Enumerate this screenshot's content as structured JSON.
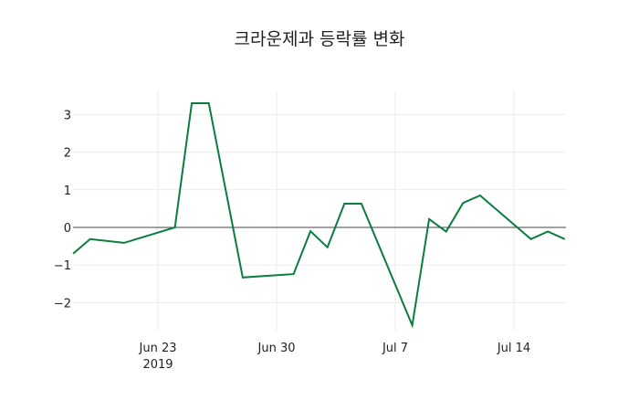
{
  "chart_data": {
    "type": "line",
    "title": "크라운제과 등락률 변화",
    "xlabel": "",
    "ylabel": "",
    "x": [
      "2019-06-18",
      "2019-06-19",
      "2019-06-21",
      "2019-06-24",
      "2019-06-25",
      "2019-06-26",
      "2019-06-28",
      "2019-07-01",
      "2019-07-02",
      "2019-07-03",
      "2019-07-04",
      "2019-07-05",
      "2019-07-08",
      "2019-07-09",
      "2019-07-10",
      "2019-07-11",
      "2019-07-12",
      "2019-07-15",
      "2019-07-16",
      "2019-07-17"
    ],
    "series": [
      {
        "name": "등락률",
        "color": "#0a7d3e",
        "values": [
          -0.7,
          -0.31,
          -0.41,
          0.0,
          3.3,
          3.3,
          -1.33,
          -1.24,
          -0.1,
          -0.53,
          0.63,
          0.63,
          -2.6,
          0.22,
          -0.11,
          0.65,
          0.85,
          -0.31,
          -0.11,
          -0.31
        ]
      }
    ],
    "ylim": [
      -2.6,
      3.6
    ],
    "yticks": [
      3,
      2,
      1,
      0,
      -1,
      -2
    ],
    "ytick_labels": [
      "3",
      "2",
      "1",
      "0",
      "−1",
      "−2"
    ],
    "xticks": [
      "2019-06-23",
      "2019-06-30",
      "2019-07-07",
      "2019-07-14"
    ],
    "xtick_labels": [
      "Jun 23",
      "Jun 30",
      "Jul 7",
      "Jul 14"
    ],
    "xtick_sublabel": "2019",
    "grid": true,
    "legend": false
  }
}
